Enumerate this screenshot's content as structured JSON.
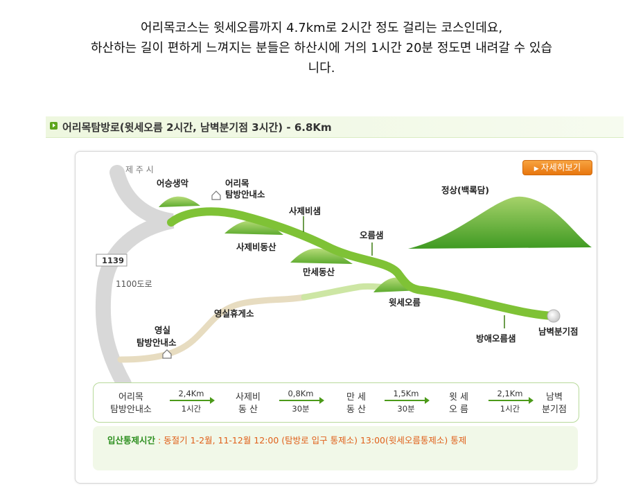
{
  "intro": {
    "line1": "어리목코스는 윗세오름까지 4.7km로 2시간 정도 걸리는 코스인데요,",
    "line2": "하산하는 길이 편하게 느껴지는 분들은 하산시에 거의 1시간 20분 정도면 내려갈 수 있습",
    "line3": "니다."
  },
  "trail": {
    "title": "어리목탐방로(윗세오름 2시간, 남벽분기점 3시간) - 6.8Km"
  },
  "map": {
    "detail_button": "자세히보기",
    "labels": {
      "jeju_city": "제 주 시",
      "road_number": "1139",
      "road_name": "1100도로",
      "eoseungsaengak": "어승생악",
      "eorimok_office_1": "어리목",
      "eorimok_office_2": "탐방안내소",
      "sajebisaem": "사제비샘",
      "sajebidongsan": "사제비동산",
      "mansedongsan": "만세동산",
      "oreumsaem": "오름샘",
      "summit": "정상(백록담)",
      "witse_oreum": "윗세오름",
      "yeongsil_rest": "영실휴게소",
      "yeongsil_office_1": "영실",
      "yeongsil_office_2": "탐방안내소",
      "bangae_oreumsaem": "방애오름샘",
      "nambyeok": "남벽분기점"
    }
  },
  "distances": {
    "stops": [
      {
        "line1": "어리목",
        "line2": "탐방안내소"
      },
      {
        "line1": "사제비",
        "line2": "동   산"
      },
      {
        "line1": "만   세",
        "line2": "동   산"
      },
      {
        "line1": "윗   세",
        "line2": "오   름"
      },
      {
        "line1": "남벽",
        "line2": "분기점"
      }
    ],
    "segments": [
      {
        "distance": "2,4Km",
        "time": "1시간"
      },
      {
        "distance": "0,8Km",
        "time": "30분"
      },
      {
        "distance": "1,5Km",
        "time": "30분"
      },
      {
        "distance": "2,1Km",
        "time": "1시간"
      }
    ]
  },
  "notice": {
    "label": "입산통제시간",
    "text": " : 동절기 1-2월, 11-12월 12:00 (탐방로 입구 통제소) 13:00(윗세오름통제소) 통제"
  },
  "colors": {
    "trail_green": "#7fc236",
    "light_trail": "#cde6a4",
    "dirt_trail": "#e7dcc0",
    "road_gray": "#d8d8d8",
    "accent_orange": "#e8760e",
    "notice_orange": "#e0601a",
    "label_green": "#2d8f1f"
  }
}
